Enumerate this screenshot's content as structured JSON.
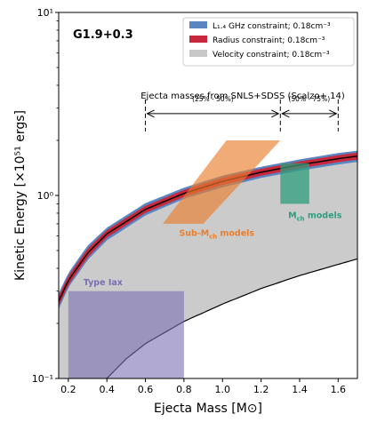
{
  "chart_data": {
    "type": "area",
    "xlabel": "Ejecta Mass [M⊙]",
    "ylabel": "Kinetic Energy [×10⁵¹ ergs]",
    "xlim": [
      0.15,
      1.7
    ],
    "ylim": [
      0.1,
      10
    ],
    "yscale": "log",
    "grid": false,
    "legend_position": "top-right",
    "panel_label": "G1.9+0.3",
    "xticks": [
      {
        "value": 0.2,
        "label": "0.2"
      },
      {
        "value": 0.4,
        "label": "0.4"
      },
      {
        "value": 0.6,
        "label": "0.6"
      },
      {
        "value": 0.8,
        "label": "0.8"
      },
      {
        "value": 1.0,
        "label": "1.0"
      },
      {
        "value": 1.2,
        "label": "1.2"
      },
      {
        "value": 1.4,
        "label": "1.4"
      },
      {
        "value": 1.6,
        "label": "1.6"
      }
    ],
    "yticks": [
      {
        "value": 0.1,
        "label": "10⁻¹"
      },
      {
        "value": 1,
        "label": "10⁰"
      },
      {
        "value": 10,
        "label": "10¹"
      }
    ],
    "legend": [
      {
        "label": "L₁.₄ GHz constraint; 0.18cm⁻³",
        "color": "#5b85c0"
      },
      {
        "label": "Radius constraint; 0.18cm⁻³",
        "color": "#c8283c"
      },
      {
        "label": "Velocity constraint; 0.18cm⁻³",
        "color": "#c8c8c8"
      }
    ],
    "series": [
      {
        "name": "L₁.₄ GHz constraint; 0.18cm⁻³",
        "kind": "band",
        "color": "#5b85c0",
        "x": [
          0.15,
          0.2,
          0.3,
          0.4,
          0.6,
          0.8,
          1.0,
          1.2,
          1.4,
          1.6,
          1.7
        ],
        "y_low": [
          0.24,
          0.315,
          0.445,
          0.57,
          0.78,
          0.96,
          1.11,
          1.25,
          1.37,
          1.48,
          1.53
        ],
        "y_high": [
          0.29,
          0.375,
          0.53,
          0.665,
          0.905,
          1.1,
          1.28,
          1.43,
          1.57,
          1.7,
          1.75
        ]
      },
      {
        "name": "Radius constraint; 0.18cm⁻³",
        "kind": "band",
        "color": "#c8283c",
        "x": [
          0.15,
          0.2,
          0.3,
          0.4,
          0.6,
          0.8,
          1.0,
          1.2,
          1.4,
          1.6,
          1.7
        ],
        "y_low": [
          0.25,
          0.325,
          0.46,
          0.59,
          0.805,
          0.985,
          1.145,
          1.285,
          1.41,
          1.525,
          1.575
        ],
        "y_high": [
          0.28,
          0.362,
          0.51,
          0.645,
          0.875,
          1.07,
          1.245,
          1.395,
          1.53,
          1.655,
          1.71
        ]
      },
      {
        "name": "Velocity constraint; 0.18cm⁻³",
        "kind": "band",
        "color": "#c8c8c8",
        "x": [
          0.15,
          0.2,
          0.3,
          0.4,
          0.5,
          0.6,
          0.8,
          1.0,
          1.2,
          1.4,
          1.6,
          1.7
        ],
        "y_low": [
          0.068,
          0.08,
          0.092,
          0.1,
          0.128,
          0.155,
          0.205,
          0.255,
          0.31,
          0.365,
          0.42,
          0.45
        ],
        "y_high": [
          0.265,
          0.345,
          0.485,
          0.615,
          0.73,
          0.84,
          1.03,
          1.195,
          1.34,
          1.47,
          1.59,
          1.64
        ]
      }
    ],
    "regions": [
      {
        "name": "Type Iax",
        "label": "Type Iax",
        "color": "#7b6fb4",
        "x_range": [
          0.2,
          0.8
        ],
        "y_range": [
          0.1,
          0.3
        ]
      },
      {
        "name": "Sub-Mch models",
        "label": "Sub-M",
        "label_sub": "ch",
        "label_tail": " models",
        "color": "#e97e2c",
        "shape": "parallelogram",
        "points": [
          [
            0.69,
            0.7
          ],
          [
            0.9,
            0.7
          ],
          [
            1.3,
            2.0
          ],
          [
            1.02,
            2.0
          ]
        ]
      },
      {
        "name": "Mch models",
        "label": "M",
        "label_sub": "ch",
        "label_tail": " models",
        "color": "#2e9e7e",
        "x_range": [
          1.3,
          1.45
        ],
        "y_range": [
          0.9,
          1.5
        ]
      }
    ],
    "annotations": {
      "title": "Ejecta masses from SNLS+SDSS (Scalzo+ 14)",
      "range_left": {
        "label": "(25% - 50%)",
        "x_range": [
          0.6,
          1.3
        ],
        "y": 2.8
      },
      "range_right": {
        "label": "(50% - 75%)",
        "x_range": [
          1.3,
          1.6
        ],
        "y": 2.8
      }
    }
  }
}
